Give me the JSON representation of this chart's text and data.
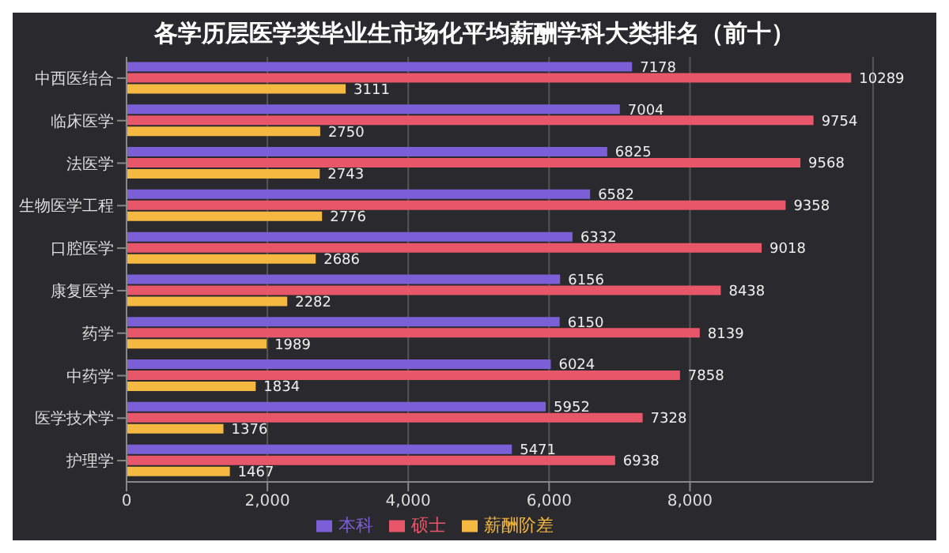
{
  "chart_data": {
    "type": "bar",
    "orientation": "horizontal",
    "title": "各学历层医学类毕业生市场化平均薪酬学科大类排名（前十）",
    "categories": [
      "中西医结合",
      "临床医学",
      "法医学",
      "生物医学工程",
      "口腔医学",
      "康复医学",
      "药学",
      "中药学",
      "医学技术学",
      "护理学"
    ],
    "series": [
      {
        "name": "本科",
        "color": "#7b5fd6",
        "values": [
          7178,
          7004,
          6825,
          6582,
          6332,
          6156,
          6150,
          6024,
          5952,
          5471
        ]
      },
      {
        "name": "硕士",
        "color": "#e8566a",
        "values": [
          10289,
          9754,
          9568,
          9358,
          9018,
          8438,
          8139,
          7858,
          7328,
          6938
        ]
      },
      {
        "name": "薪酬阶差",
        "color": "#f5b942",
        "values": [
          3111,
          2750,
          2743,
          2776,
          2686,
          2282,
          1989,
          1834,
          1376,
          1467
        ]
      }
    ],
    "xlim": [
      0,
      10600
    ],
    "xticks": [
      0,
      {
        "value": 2000,
        "label": "2,000"
      },
      {
        "value": 4000,
        "label": "4,000"
      },
      {
        "value": 6000,
        "label": "6,000"
      },
      {
        "value": 8000,
        "label": "8,000"
      }
    ],
    "grid": "x",
    "legend": "bottom",
    "data_labels": true
  }
}
